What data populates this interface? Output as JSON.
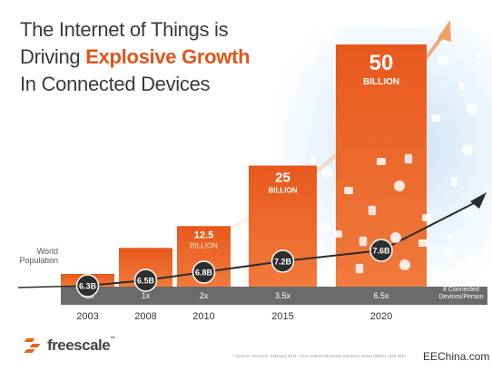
{
  "title": {
    "line1": "The Internet of Things is",
    "line2_prefix": "Driving ",
    "line2_accent": "Explosive Growth",
    "line3": "In Connected Devices"
  },
  "chart_data": {
    "type": "bar",
    "categories": [
      "2003",
      "2008",
      "2010",
      "2015",
      "2020"
    ],
    "series": [
      {
        "name": "Connected Devices",
        "values": [
          0.5,
          8,
          12.5,
          25,
          50
        ],
        "value_labels": [
          "",
          "",
          "12.5",
          "25",
          "50"
        ],
        "unit_labels": [
          "",
          "",
          "BILLION",
          "BILLION",
          "BILLION"
        ]
      },
      {
        "name": "World Population",
        "values": [
          6.3,
          6.5,
          6.8,
          7.2,
          7.6
        ],
        "value_labels": [
          "6.3B",
          "6.5B",
          "6.8B",
          "7.2B",
          "7.6B"
        ]
      }
    ],
    "devices_per_person": [
      "<1x",
      "1x",
      "2x",
      "3.5x",
      "6.5x"
    ],
    "population_label": "World Population",
    "devices_per_person_label": "# Connected Devices/Person",
    "colors": {
      "bar": "#e8581c",
      "bar_light": "#f07a3c",
      "population_line": "#2b2b2b",
      "marker": "#2e2e2e",
      "strip": "#6b6b6b",
      "growth_arrow": "#f4a06a"
    }
  },
  "footer": {
    "brand": "freescale",
    "trademark": "™",
    "sources": "* Sources: Ericsson, February 2011; Cisco Internet Business Solutions Group (IBSG), April 2011",
    "watermark": "EEChina.com"
  }
}
